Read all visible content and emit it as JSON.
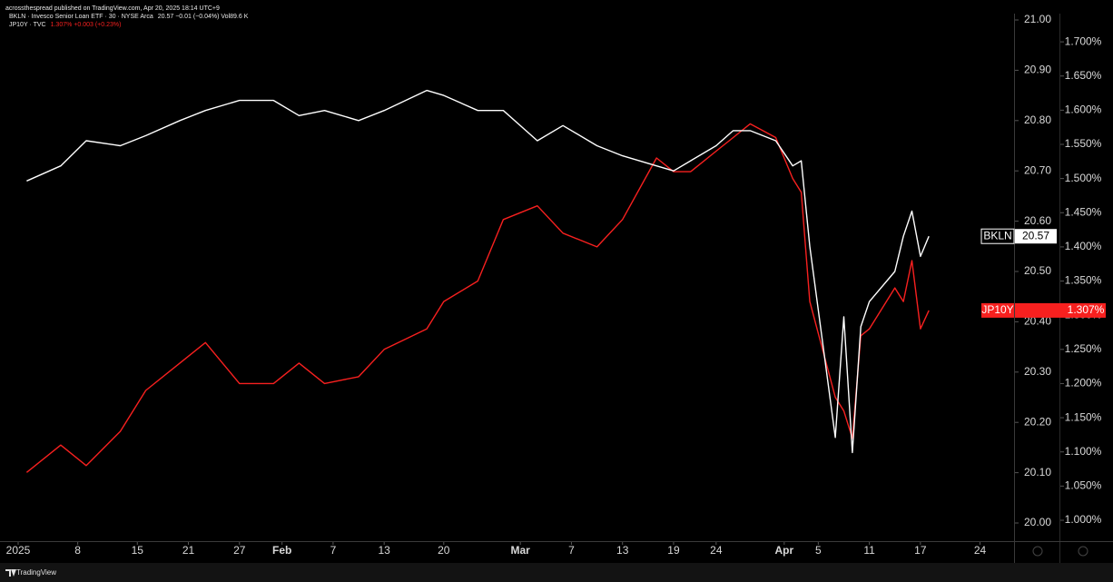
{
  "header": {
    "published": "acrossthespread published on TradingView.com, Apr 20, 2025 18:14 UTC+9"
  },
  "footer": {
    "brand": "TradingView"
  },
  "chart_data": {
    "type": "line",
    "x": [
      "2025-01-02",
      "2025-01-06",
      "2025-01-09",
      "2025-01-13",
      "2025-01-16",
      "2025-01-20",
      "2025-01-23",
      "2025-01-27",
      "2025-01-31",
      "2025-02-03",
      "2025-02-06",
      "2025-02-10",
      "2025-02-13",
      "2025-02-18",
      "2025-02-20",
      "2025-02-24",
      "2025-02-27",
      "2025-03-03",
      "2025-03-06",
      "2025-03-10",
      "2025-03-13",
      "2025-03-17",
      "2025-03-19",
      "2025-03-21",
      "2025-03-24",
      "2025-03-26",
      "2025-03-28",
      "2025-03-31",
      "2025-04-02",
      "2025-04-03",
      "2025-04-04",
      "2025-04-07",
      "2025-04-08",
      "2025-04-09",
      "2025-04-10",
      "2025-04-11",
      "2025-04-14",
      "2025-04-15",
      "2025-04-16",
      "2025-04-17",
      "2025-04-18"
    ],
    "xlim": [
      "2025-01-01",
      "2025-04-28"
    ],
    "xticks": [
      {
        "value": "2025-01-01",
        "label": "2025"
      },
      {
        "value": "2025-01-08",
        "label": "8"
      },
      {
        "value": "2025-01-15",
        "label": "15"
      },
      {
        "value": "2025-01-21",
        "label": "21"
      },
      {
        "value": "2025-01-27",
        "label": "27"
      },
      {
        "value": "2025-02-01",
        "label": "Feb"
      },
      {
        "value": "2025-02-07",
        "label": "7"
      },
      {
        "value": "2025-02-13",
        "label": "13"
      },
      {
        "value": "2025-02-20",
        "label": "20"
      },
      {
        "value": "2025-03-01",
        "label": "Mar"
      },
      {
        "value": "2025-03-07",
        "label": "7"
      },
      {
        "value": "2025-03-13",
        "label": "13"
      },
      {
        "value": "2025-03-19",
        "label": "19"
      },
      {
        "value": "2025-03-24",
        "label": "24"
      },
      {
        "value": "2025-04-01",
        "label": "Apr"
      },
      {
        "value": "2025-04-05",
        "label": "5"
      },
      {
        "value": "2025-04-11",
        "label": "11"
      },
      {
        "value": "2025-04-17",
        "label": "17"
      },
      {
        "value": "2025-04-24",
        "label": "24"
      }
    ],
    "ylim": [
      20.0,
      21.0
    ],
    "yticks": [
      {
        "value": 20.0,
        "label": "20.00"
      },
      {
        "value": 20.1,
        "label": "20.10"
      },
      {
        "value": 20.2,
        "label": "20.20"
      },
      {
        "value": 20.3,
        "label": "20.30"
      },
      {
        "value": 20.4,
        "label": "20.40"
      },
      {
        "value": 20.5,
        "label": "20.50"
      },
      {
        "value": 20.6,
        "label": "20.60"
      },
      {
        "value": 20.7,
        "label": "20.70"
      },
      {
        "value": 20.8,
        "label": "20.80"
      },
      {
        "value": 20.9,
        "label": "20.90"
      },
      {
        "value": 21.0,
        "label": "21.00"
      }
    ],
    "y2lim": [
      0.996,
      1.732
    ],
    "y2ticks": [
      {
        "value": 1.0,
        "label": "1.000%"
      },
      {
        "value": 1.05,
        "label": "1.050%"
      },
      {
        "value": 1.1,
        "label": "1.100%"
      },
      {
        "value": 1.15,
        "label": "1.150%"
      },
      {
        "value": 1.2,
        "label": "1.200%"
      },
      {
        "value": 1.25,
        "label": "1.250%"
      },
      {
        "value": 1.3,
        "label": "1.300%"
      },
      {
        "value": 1.35,
        "label": "1.350%"
      },
      {
        "value": 1.4,
        "label": "1.400%"
      },
      {
        "value": 1.45,
        "label": "1.450%"
      },
      {
        "value": 1.5,
        "label": "1.500%"
      },
      {
        "value": 1.55,
        "label": "1.550%"
      },
      {
        "value": 1.6,
        "label": "1.600%"
      },
      {
        "value": 1.65,
        "label": "1.650%"
      },
      {
        "value": 1.7,
        "label": "1.700%"
      }
    ],
    "grid": false,
    "series": [
      {
        "name": "BKLN",
        "color": "#ffffff",
        "axis": "y",
        "legend_text": "BKLN · Invesco Senior Loan ETF · 30 · NYSE Arca",
        "quote": "20.57  −0.01 (−0.04%)  Vol89.6 K",
        "values": [
          20.68,
          20.71,
          20.76,
          20.75,
          20.77,
          20.8,
          20.82,
          20.84,
          20.84,
          20.81,
          20.82,
          20.8,
          20.82,
          20.86,
          20.85,
          20.82,
          20.82,
          20.76,
          20.79,
          20.75,
          20.73,
          20.71,
          20.7,
          20.72,
          20.75,
          20.78,
          20.78,
          20.76,
          20.71,
          20.72,
          20.55,
          20.17,
          20.41,
          20.14,
          20.39,
          20.44,
          20.5,
          20.57,
          20.62,
          20.53,
          20.57
        ]
      },
      {
        "name": "JP10Y",
        "color": "#f7201f",
        "axis": "y2",
        "legend_text": "JP10Y · TVC",
        "quote": "1.307%  +0.003 (+0.23%)",
        "last_label": "1.307%",
        "values": [
          1.07,
          1.11,
          1.08,
          1.13,
          1.19,
          1.23,
          1.26,
          1.2,
          1.2,
          1.23,
          1.2,
          1.21,
          1.25,
          1.28,
          1.32,
          1.35,
          1.44,
          1.46,
          1.42,
          1.4,
          1.44,
          1.53,
          1.51,
          1.51,
          1.54,
          1.56,
          1.58,
          1.56,
          1.5,
          1.48,
          1.32,
          1.18,
          1.16,
          1.12,
          1.27,
          1.28,
          1.34,
          1.32,
          1.38,
          1.28,
          1.307
        ]
      }
    ]
  }
}
